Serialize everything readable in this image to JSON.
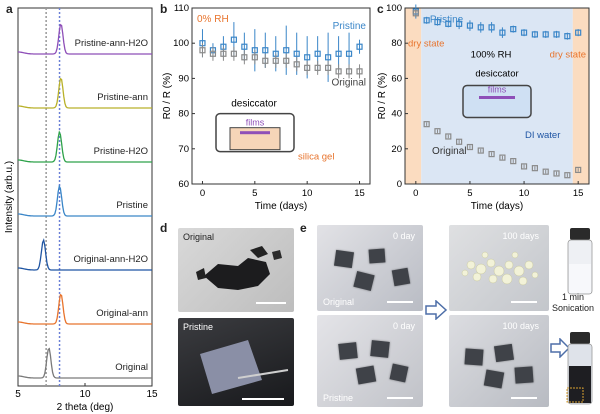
{
  "panels": {
    "a": "a",
    "b": "b",
    "c": "c",
    "d": "d",
    "e": "e"
  },
  "chart_data": [
    {
      "type": "line",
      "panel": "a",
      "xlabel": "2 theta (deg)",
      "ylabel": "Intensity (arb.u.)",
      "xlim": [
        5,
        15
      ],
      "x_ticks": [
        5,
        10,
        15
      ],
      "reference_lines": [
        7.1,
        8.1
      ],
      "series": [
        {
          "name": "Original",
          "color": "#7a7a7a",
          "peak": 7.3
        },
        {
          "name": "Original-ann",
          "color": "#e8742d",
          "peak": 8.2
        },
        {
          "name": "Original-ann-H2O",
          "color": "#1f55a3",
          "peak": 6.9
        },
        {
          "name": "Pristine",
          "color": "#3a86c8",
          "peak": 8.1
        },
        {
          "name": "Pristine-H2O",
          "color": "#2ea24a",
          "peak": 8.1
        },
        {
          "name": "Pristine-ann",
          "color": "#b9b12a",
          "peak": 8.2
        },
        {
          "name": "Pristine-ann-H2O",
          "color": "#8e4fb8",
          "peak": 8.2
        }
      ]
    },
    {
      "type": "scatter",
      "panel": "b",
      "xlabel": "Time (days)",
      "ylabel": "R0 / R (%)",
      "xlim": [
        -1,
        16
      ],
      "ylim": [
        60,
        110
      ],
      "x_ticks": [
        0,
        5,
        10,
        15
      ],
      "y_ticks": [
        60,
        70,
        80,
        90,
        100,
        110
      ],
      "annotations": [
        "0% RH",
        "desiccator",
        "films",
        "silica gel"
      ],
      "series": [
        {
          "name": "Pristine",
          "color": "#3a86c8",
          "x": [
            0,
            1,
            2,
            3,
            4,
            5,
            6,
            7,
            8,
            9,
            10,
            11,
            12,
            13,
            14,
            15
          ],
          "y": [
            100,
            98,
            99,
            101,
            99,
            98,
            98,
            97,
            98,
            97,
            96,
            97,
            96,
            97,
            97,
            99
          ],
          "err": [
            4,
            2,
            3,
            5,
            4,
            6,
            5,
            5,
            7,
            6,
            6,
            5,
            7,
            5,
            6,
            2
          ]
        },
        {
          "name": "Original",
          "color": "#8a8a8a",
          "x": [
            0,
            1,
            2,
            3,
            4,
            5,
            6,
            7,
            8,
            9,
            10,
            11,
            12,
            13,
            14,
            15
          ],
          "y": [
            98,
            97,
            97,
            97,
            96,
            96,
            95,
            95,
            95,
            94,
            93,
            93,
            93,
            92,
            92,
            92
          ],
          "err": [
            2,
            2,
            2,
            2,
            2,
            2,
            2,
            2,
            2,
            2,
            2,
            2,
            2,
            2,
            2,
            2
          ]
        }
      ]
    },
    {
      "type": "scatter",
      "panel": "c",
      "xlabel": "Time (days)",
      "ylabel": "R0 / R (%)",
      "xlim": [
        -1,
        16
      ],
      "ylim": [
        0,
        100
      ],
      "x_ticks": [
        0,
        5,
        10,
        15
      ],
      "y_ticks": [
        0,
        20,
        40,
        60,
        80,
        100
      ],
      "annotations": [
        "dry state",
        "100% RH",
        "dry state",
        "desiccator",
        "films",
        "DI water"
      ],
      "series": [
        {
          "name": "Pristine",
          "color": "#3a86c8",
          "x": [
            0,
            1,
            2,
            3,
            4,
            5,
            6,
            7,
            8,
            9,
            10,
            11,
            12,
            13,
            14,
            15
          ],
          "y": [
            98,
            93,
            92,
            91,
            91,
            90,
            89,
            89,
            86,
            88,
            86,
            85,
            85,
            85,
            84,
            86
          ],
          "err": [
            4,
            2,
            2,
            2,
            3,
            3,
            3,
            3,
            3,
            2,
            2,
            2,
            2,
            2,
            2,
            2
          ]
        },
        {
          "name": "Original",
          "color": "#8a8a8a",
          "x": [
            0,
            1,
            2,
            3,
            4,
            5,
            6,
            7,
            8,
            9,
            10,
            11,
            12,
            13,
            14,
            15
          ],
          "y": [
            97,
            34,
            30,
            27,
            24,
            21,
            19,
            17,
            15,
            13,
            10,
            9,
            7,
            6,
            5,
            8
          ],
          "err": [
            2,
            1,
            1,
            1,
            1,
            1,
            1,
            1,
            1,
            1,
            1,
            1,
            1,
            1,
            1,
            1
          ]
        }
      ]
    }
  ],
  "photos_d": {
    "top": "Original",
    "bottom": "Pristine"
  },
  "photos_e": {
    "tl_day": "0 day",
    "tl_name": "Original",
    "tr_day": "100 days",
    "bl_day": "0 day",
    "bl_name": "Pristine",
    "br_day": "100 days",
    "vial_label": "1 min",
    "vial_label2": "Sonication"
  }
}
